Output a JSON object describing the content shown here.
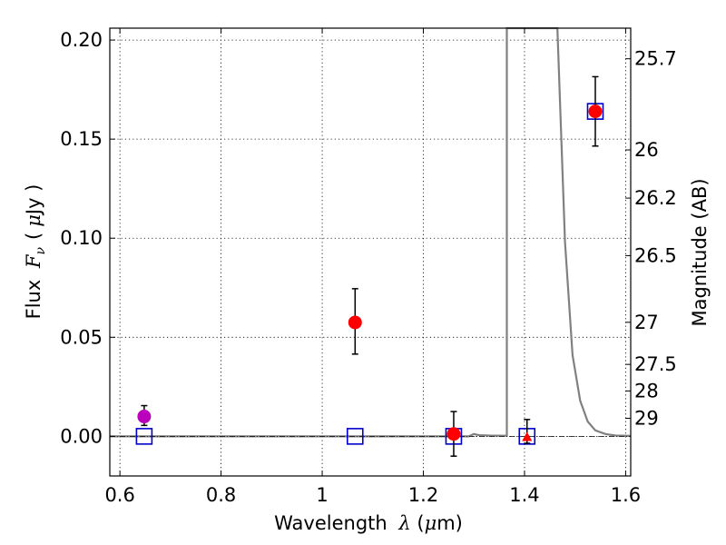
{
  "chart_data": {
    "type": "scatter",
    "xlabel": "Wavelength  λ (μm)",
    "ylabel": "Flux  Fν  ( μJy )",
    "y2label": "Magnitude (AB)",
    "xlim": [
      0.58,
      1.61
    ],
    "ylim": [
      -0.02,
      0.206
    ],
    "grid": true,
    "x_ticks": [
      {
        "value": 0.6,
        "label": "0.6"
      },
      {
        "value": 0.8,
        "label": "0.8"
      },
      {
        "value": 1.0,
        "label": "1"
      },
      {
        "value": 1.2,
        "label": "1.2"
      },
      {
        "value": 1.4,
        "label": "1.4"
      },
      {
        "value": 1.6,
        "label": "1.6"
      }
    ],
    "y_ticks": [
      {
        "value": 0.0,
        "label": "0.00"
      },
      {
        "value": 0.05,
        "label": "0.05"
      },
      {
        "value": 0.1,
        "label": "0.10"
      },
      {
        "value": 0.15,
        "label": "0.15"
      },
      {
        "value": 0.2,
        "label": "0.20"
      }
    ],
    "y2_ticks": [
      {
        "value": 25.7,
        "label": "25.7"
      },
      {
        "value": 26,
        "label": "26"
      },
      {
        "value": 26.2,
        "label": "26.2"
      },
      {
        "value": 26.5,
        "label": "26.5"
      },
      {
        "value": 27,
        "label": "27"
      },
      {
        "value": 27.5,
        "label": "27.5"
      },
      {
        "value": 28,
        "label": "28"
      },
      {
        "value": 29,
        "label": "29"
      }
    ],
    "series": [
      {
        "marker": "circle",
        "color": "#ff0000",
        "points": [
          {
            "x": 1.065,
            "y": 0.0575,
            "err_low": 0.0415,
            "err_high": 0.0745
          },
          {
            "x": 1.26,
            "y": 0.0012,
            "err_low": -0.01,
            "err_high": 0.0125
          },
          {
            "x": 1.54,
            "y": 0.164,
            "err_low": 0.1465,
            "err_high": 0.1815
          }
        ]
      },
      {
        "marker": "circle",
        "color": "#bb00bb",
        "points": [
          {
            "x": 0.648,
            "y": 0.01,
            "err_low": 0.0055,
            "err_high": 0.0155
          }
        ]
      },
      {
        "marker": "triangle",
        "color": "#ff0000",
        "points": [
          {
            "x": 1.405,
            "y": -0.0005,
            "err_low": -0.0035,
            "err_high": 0.0085
          }
        ]
      },
      {
        "marker": "square-open",
        "color": "#0000cc",
        "points": [
          {
            "x": 0.648,
            "y": 0.0
          },
          {
            "x": 1.065,
            "y": 0.0
          },
          {
            "x": 1.26,
            "y": 0.0
          },
          {
            "x": 1.405,
            "y": 0.0
          },
          {
            "x": 1.54,
            "y": 0.164
          }
        ]
      },
      {
        "marker": "line",
        "color": "#808080",
        "points": [
          {
            "x": 0.58,
            "y": 0.0
          },
          {
            "x": 1.29,
            "y": 0.0
          },
          {
            "x": 1.3,
            "y": 0.0012
          },
          {
            "x": 1.31,
            "y": 0.0006
          },
          {
            "x": 1.33,
            "y": 0.0004
          },
          {
            "x": 1.36,
            "y": 0.0003
          },
          {
            "x": 1.365,
            "y": 0.0003
          },
          {
            "x": 1.365,
            "y": 0.206
          },
          {
            "x": 1.465,
            "y": 0.206
          },
          {
            "x": 1.48,
            "y": 0.098
          },
          {
            "x": 1.495,
            "y": 0.041
          },
          {
            "x": 1.51,
            "y": 0.018
          },
          {
            "x": 1.525,
            "y": 0.0075
          },
          {
            "x": 1.54,
            "y": 0.003
          },
          {
            "x": 1.56,
            "y": 0.0012
          },
          {
            "x": 1.58,
            "y": 0.0004
          },
          {
            "x": 1.61,
            "y": 0.0002
          }
        ]
      }
    ]
  }
}
